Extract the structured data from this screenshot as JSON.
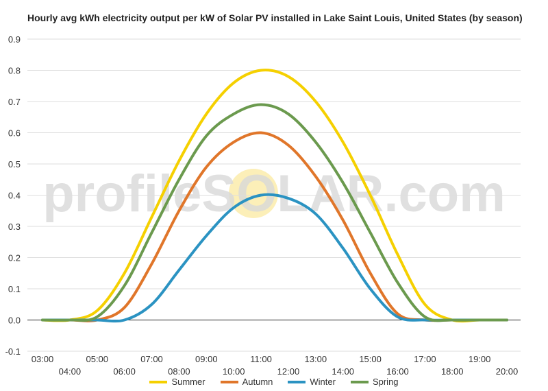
{
  "chart_data": {
    "type": "line",
    "title": "Hourly avg kWh electricity output per kW of Solar PV installed in Lake Saint Louis, United States (by season)",
    "xlabel": "",
    "ylabel": "",
    "watermark": "profileSOLAR.com",
    "x_ticks": [
      "03:00",
      "04:00",
      "05:00",
      "06:00",
      "07:00",
      "08:00",
      "09:00",
      "10:00",
      "11:00",
      "12:00",
      "13:00",
      "14:00",
      "15:00",
      "16:00",
      "17:00",
      "18:00",
      "19:00",
      "20:00"
    ],
    "y_ticks": [
      "-0.1",
      "0.0",
      "0.1",
      "0.2",
      "0.3",
      "0.4",
      "0.5",
      "0.6",
      "0.7",
      "0.8",
      "0.9"
    ],
    "ylim": [
      -0.1,
      0.9
    ],
    "grid": true,
    "legend_position": "bottom",
    "series": [
      {
        "name": "Summer",
        "color": "#f5d000",
        "values": [
          0.0,
          0.0,
          0.03,
          0.15,
          0.33,
          0.51,
          0.66,
          0.76,
          0.8,
          0.78,
          0.7,
          0.57,
          0.4,
          0.21,
          0.05,
          0.0,
          0.0,
          0.0
        ]
      },
      {
        "name": "Autumn",
        "color": "#e0762a",
        "values": [
          0.0,
          0.0,
          0.0,
          0.04,
          0.18,
          0.35,
          0.49,
          0.57,
          0.6,
          0.56,
          0.46,
          0.32,
          0.15,
          0.02,
          0.0,
          0.0,
          0.0,
          0.0
        ]
      },
      {
        "name": "Winter",
        "color": "#2b93c2",
        "values": [
          0.0,
          0.0,
          0.0,
          0.0,
          0.05,
          0.16,
          0.27,
          0.36,
          0.4,
          0.39,
          0.34,
          0.23,
          0.1,
          0.01,
          0.0,
          0.0,
          0.0,
          0.0
        ]
      },
      {
        "name": "Spring",
        "color": "#6b9a4e",
        "values": [
          0.0,
          0.0,
          0.01,
          0.11,
          0.28,
          0.45,
          0.59,
          0.66,
          0.69,
          0.66,
          0.57,
          0.44,
          0.28,
          0.12,
          0.01,
          0.0,
          0.0,
          0.0
        ]
      }
    ]
  }
}
